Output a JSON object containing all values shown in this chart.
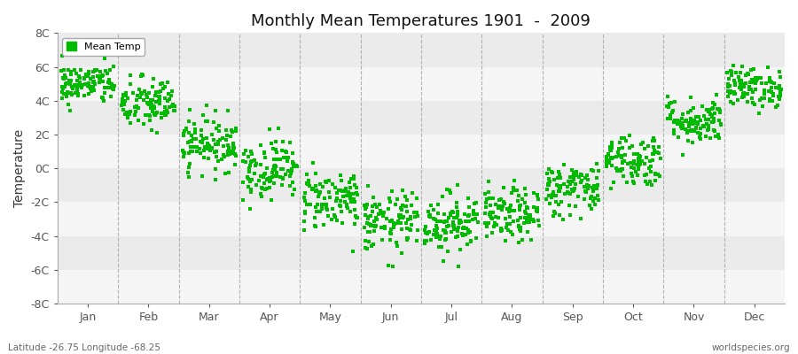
{
  "title": "Monthly Mean Temperatures 1901  -  2009",
  "ylabel": "Temperature",
  "bottom_left_text": "Latitude -26.75 Longitude -68.25",
  "bottom_right_text": "worldspecies.org",
  "legend_label": "Mean Temp",
  "dot_color": "#00bb00",
  "background_color": "#ffffff",
  "plot_bg_color": "#ebebeb",
  "band_color": "#f5f5f5",
  "ylim": [
    -8,
    8
  ],
  "yticks": [
    -8,
    -6,
    -4,
    -2,
    0,
    2,
    4,
    6,
    8
  ],
  "months": [
    "Jan",
    "Feb",
    "Mar",
    "Apr",
    "May",
    "Jun",
    "Jul",
    "Aug",
    "Sep",
    "Oct",
    "Nov",
    "Dec"
  ],
  "month_mean_temps": [
    5.0,
    3.8,
    1.5,
    0.0,
    -1.8,
    -3.2,
    -3.2,
    -2.8,
    -1.2,
    0.5,
    2.8,
    4.8
  ],
  "month_std_temps": [
    0.6,
    0.8,
    0.8,
    0.9,
    0.9,
    0.9,
    0.9,
    0.8,
    0.8,
    0.8,
    0.7,
    0.6
  ],
  "n_years": 109,
  "seed": 42
}
